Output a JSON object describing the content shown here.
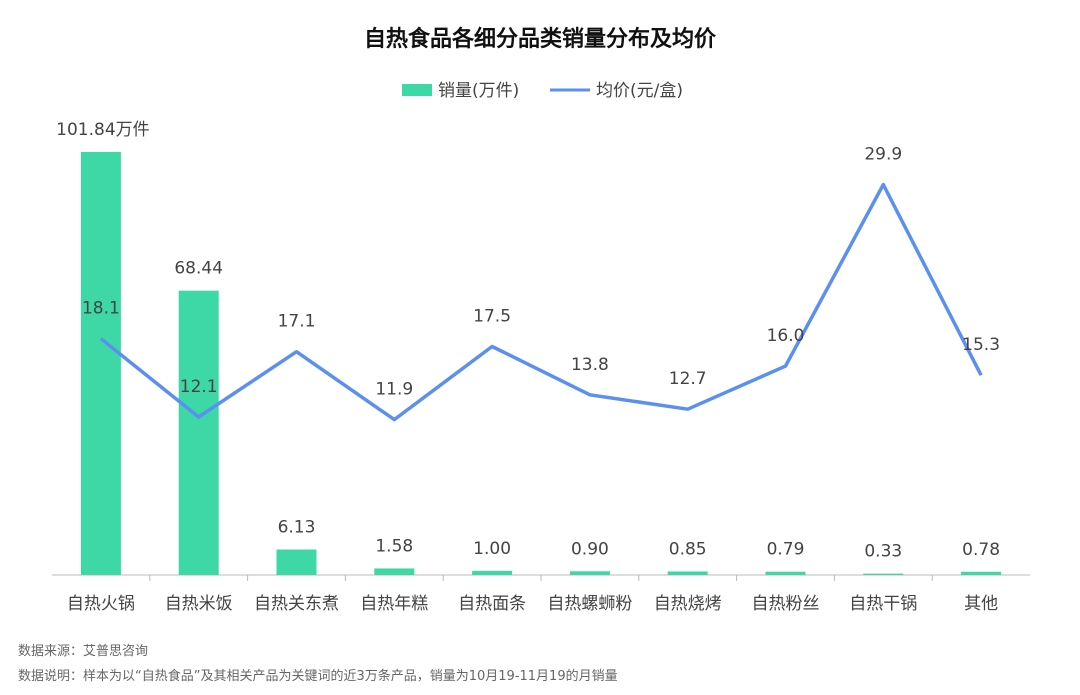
{
  "chart_data": {
    "type": "bar-line",
    "title": "自热食品各细分品类销量分布及均价",
    "categories": [
      "自热火锅",
      "自热米饭",
      "自热关东煮",
      "自热年糕",
      "自热面条",
      "自热螺蛳粉",
      "自热烧烤",
      "自热粉丝",
      "自热干锅",
      "其他"
    ],
    "series": [
      {
        "name": "销量(万件)",
        "type": "bar",
        "color": "#3dd8a5",
        "values": [
          101.84,
          68.44,
          6.13,
          1.58,
          1.0,
          0.9,
          0.85,
          0.79,
          0.33,
          0.78
        ],
        "value_labels": [
          "101.84万件",
          "68.44",
          "6.13",
          "1.58",
          "1.00",
          "0.90",
          "0.85",
          "0.79",
          "0.33",
          "0.78"
        ]
      },
      {
        "name": "均价(元/盒)",
        "type": "line",
        "axis": "y2",
        "color": "#5b8ff0",
        "values": [
          18.1,
          12.1,
          17.1,
          11.9,
          17.5,
          13.8,
          12.7,
          16.0,
          29.9,
          15.3
        ],
        "value_labels": [
          "18.1",
          "12.1",
          "17.1",
          "11.9",
          "17.5",
          "13.8",
          "12.7",
          "16.0",
          "29.9",
          "15.3"
        ]
      }
    ],
    "ylim": [
      0,
      110
    ],
    "y2lim": [
      0,
      35
    ],
    "legend": "top",
    "source": "数据来源：艾普思咨询",
    "note": "数据说明：样本为以“自热食品”及其相关产品为关键词的近3万条产品，销量为10月19-11月19的月销量"
  }
}
